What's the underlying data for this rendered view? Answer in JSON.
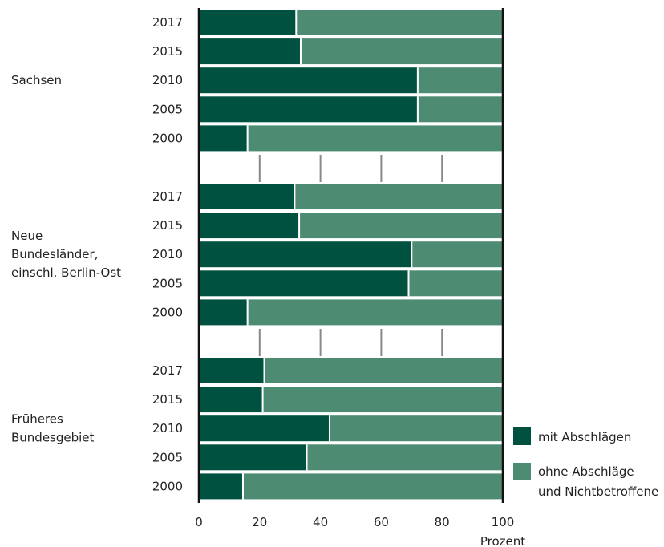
{
  "chart_data": {
    "type": "bar",
    "stacked": true,
    "orientation": "horizontal",
    "xlabel": "Prozent",
    "xlim": [
      0,
      100
    ],
    "xticks": [
      "0",
      "20",
      "40",
      "60",
      "80",
      "100"
    ],
    "groups": [
      {
        "label_lines": [
          "Sachsen"
        ],
        "categories": [
          "2017",
          "2015",
          "2010",
          "2005",
          "2000"
        ],
        "mit": [
          32,
          33.5,
          72,
          72,
          16
        ]
      },
      {
        "label_lines": [
          "Neue",
          "Bundesländer,",
          "einschl. Berlin-Ost"
        ],
        "categories": [
          "2017",
          "2015",
          "2010",
          "2005",
          "2000"
        ],
        "mit": [
          31.5,
          33,
          70,
          69,
          16
        ]
      },
      {
        "label_lines": [
          "Früheres",
          "Bundesgebiet"
        ],
        "categories": [
          "2017",
          "2015",
          "2010",
          "2005",
          "2000"
        ],
        "mit": [
          21.5,
          21,
          43,
          35.5,
          14.5
        ]
      }
    ],
    "series": [
      {
        "name": "mit Abschlägen",
        "color": "#00513f"
      },
      {
        "name": "ohne Abschläge und Nichtbetroffene",
        "name_lines": [
          "ohne Abschläge",
          "und Nichtbetroffene"
        ],
        "color": "#4d8c72"
      }
    ],
    "legend_position": "right"
  }
}
